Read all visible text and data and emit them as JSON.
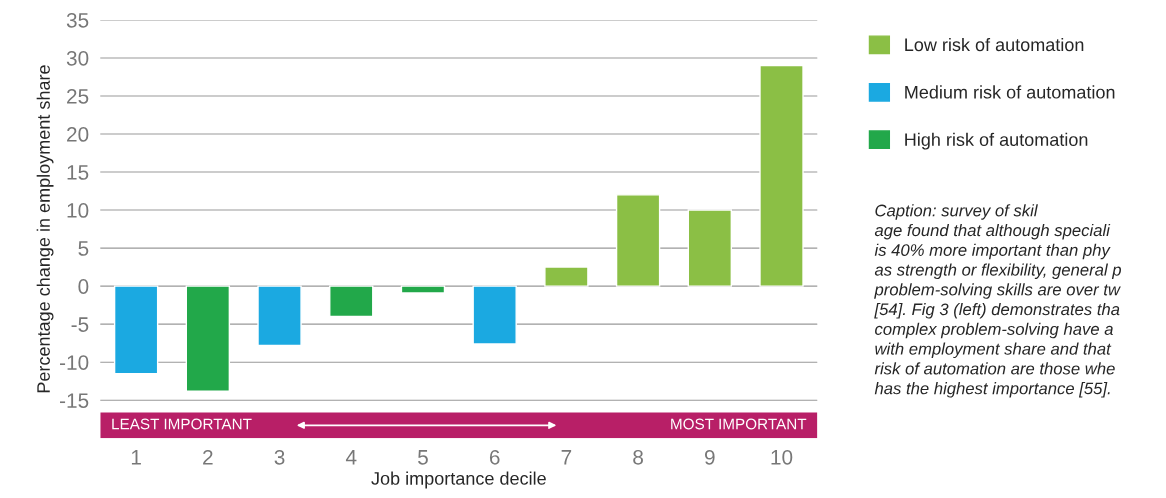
{
  "chart_data": {
    "type": "bar",
    "xlabel": "Job importance decile",
    "ylabel": "Percentage change in employment share",
    "categories": [
      "1",
      "2",
      "3",
      "4",
      "5",
      "6",
      "7",
      "8",
      "9",
      "10"
    ],
    "series": [
      {
        "name": "Low risk of automation",
        "color": "#8bbf45",
        "values": [
          null,
          null,
          null,
          null,
          null,
          null,
          2.5,
          12,
          10,
          29
        ]
      },
      {
        "name": "Medium risk of automation",
        "color": "#1ba9e1",
        "values": [
          -11.5,
          null,
          -7.8,
          null,
          null,
          -7.6,
          null,
          null,
          null,
          null
        ]
      },
      {
        "name": "High risk of automation",
        "color": "#22a84a",
        "values": [
          null,
          -13.8,
          null,
          -4,
          -0.9,
          null,
          null,
          null,
          null,
          null
        ]
      }
    ],
    "ylim": [
      -20,
      35
    ],
    "yticks": [
      -15,
      -10,
      -5,
      0,
      5,
      10,
      15,
      20,
      25,
      30,
      35
    ],
    "grid": "y",
    "legend": "top right",
    "annotations": [
      "LEAST IMPORTANT",
      "MOST IMPORTANT",
      "Caption: survey of skil\nage found that although speciali\nis 40% more important than phy\nas strength or flexibility, general p\nproblem-solving skills are over tw\n[54]. Fig 3 (left) demonstrates tha\ncomplex problem-solving have a\nwith employment share and that\nrisk of automation are those whe\nhas the highest importance [55]."
    ]
  }
}
